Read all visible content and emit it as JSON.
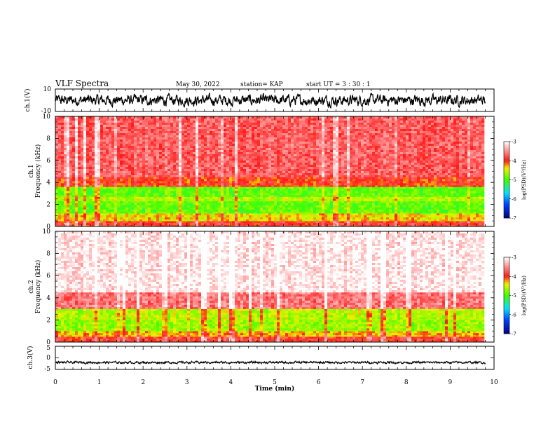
{
  "header": {
    "title": "VLF Spectra",
    "date": "May 30, 2022",
    "station": "station= KAP",
    "start": "start UT =  3 : 30 : 1"
  },
  "chart_data": [
    {
      "type": "line",
      "panel": "ch1-waveform",
      "ylabel": "ch.1(V)",
      "ylim": [
        -10,
        10
      ],
      "y_ticks": [
        "10",
        "-10"
      ],
      "x_range_min": [
        0,
        9.8
      ],
      "trace_level_approx": 0,
      "trace_amplitude_approx": 5
    },
    {
      "type": "heatmap",
      "panel": "ch1-spectrogram",
      "ylabel": "ch.1\nFrequency (kHz)",
      "ylim": [
        0,
        10
      ],
      "y_ticks": [
        "0",
        "2",
        "4",
        "6",
        "8",
        "10"
      ],
      "x_range_min": [
        0,
        9.8
      ],
      "bands": [
        {
          "f_from": 0,
          "f_to": 0.5,
          "level": -3.9
        },
        {
          "f_from": 0.5,
          "f_to": 1.2,
          "level": -4.4
        },
        {
          "f_from": 1.2,
          "f_to": 2.3,
          "level": -4.9
        },
        {
          "f_from": 2.3,
          "f_to": 2.7,
          "level": -4.6
        },
        {
          "f_from": 2.7,
          "f_to": 3.6,
          "level": -4.9
        },
        {
          "f_from": 3.6,
          "f_to": 4.5,
          "level": -4.0
        },
        {
          "f_from": 4.5,
          "f_to": 10,
          "level": -3.7
        }
      ]
    },
    {
      "type": "heatmap",
      "panel": "ch2-spectrogram",
      "ylabel": "ch.2\nFrequency (kHz)",
      "ylim": [
        0,
        10
      ],
      "y_ticks": [
        "0",
        "2",
        "4",
        "6",
        "8",
        "10"
      ],
      "x_range_min": [
        0,
        9.8
      ],
      "bands": [
        {
          "f_from": 0,
          "f_to": 0.5,
          "level": -3.9
        },
        {
          "f_from": 0.5,
          "f_to": 1.0,
          "level": -4.3
        },
        {
          "f_from": 1.0,
          "f_to": 2.0,
          "level": -4.7
        },
        {
          "f_from": 2.0,
          "f_to": 3.0,
          "level": -4.6
        },
        {
          "f_from": 3.0,
          "f_to": 4.5,
          "level": -3.6
        },
        {
          "f_from": 4.5,
          "f_to": 10,
          "level": -3.1
        }
      ]
    },
    {
      "type": "line",
      "panel": "ch3-waveform",
      "ylabel": "ch.3(V)",
      "ylim": [
        -5,
        5
      ],
      "y_ticks": [
        "5",
        "0",
        "-5"
      ],
      "x_range_min": [
        0,
        9.8
      ],
      "trace_level_approx": -2,
      "trace_amplitude_approx": 0.5
    }
  ],
  "x_axis": {
    "label": "Time (min)",
    "ticks": [
      "0",
      "1",
      "2",
      "3",
      "4",
      "5",
      "6",
      "7",
      "8",
      "9",
      "10"
    ],
    "xlim": [
      0,
      10
    ]
  },
  "colorbars": [
    {
      "label": "log(PSD)(V²/Hz)",
      "ticks": [
        "-3",
        "-4",
        "-5",
        "-6",
        "-7"
      ],
      "range": [
        -7,
        -3
      ]
    },
    {
      "label": "log(PSD)(V²/Hz)",
      "ticks": [
        "-3",
        "-4",
        "-5",
        "-6",
        "-7"
      ],
      "range": [
        -7,
        -3
      ]
    }
  ],
  "colors": {
    "low": "#000080",
    "blue": "#0040ff",
    "cyan": "#00e0ff",
    "green": "#40ff00",
    "yellow": "#f0f000",
    "red": "#ff1a1a",
    "high": "#ffffff"
  }
}
